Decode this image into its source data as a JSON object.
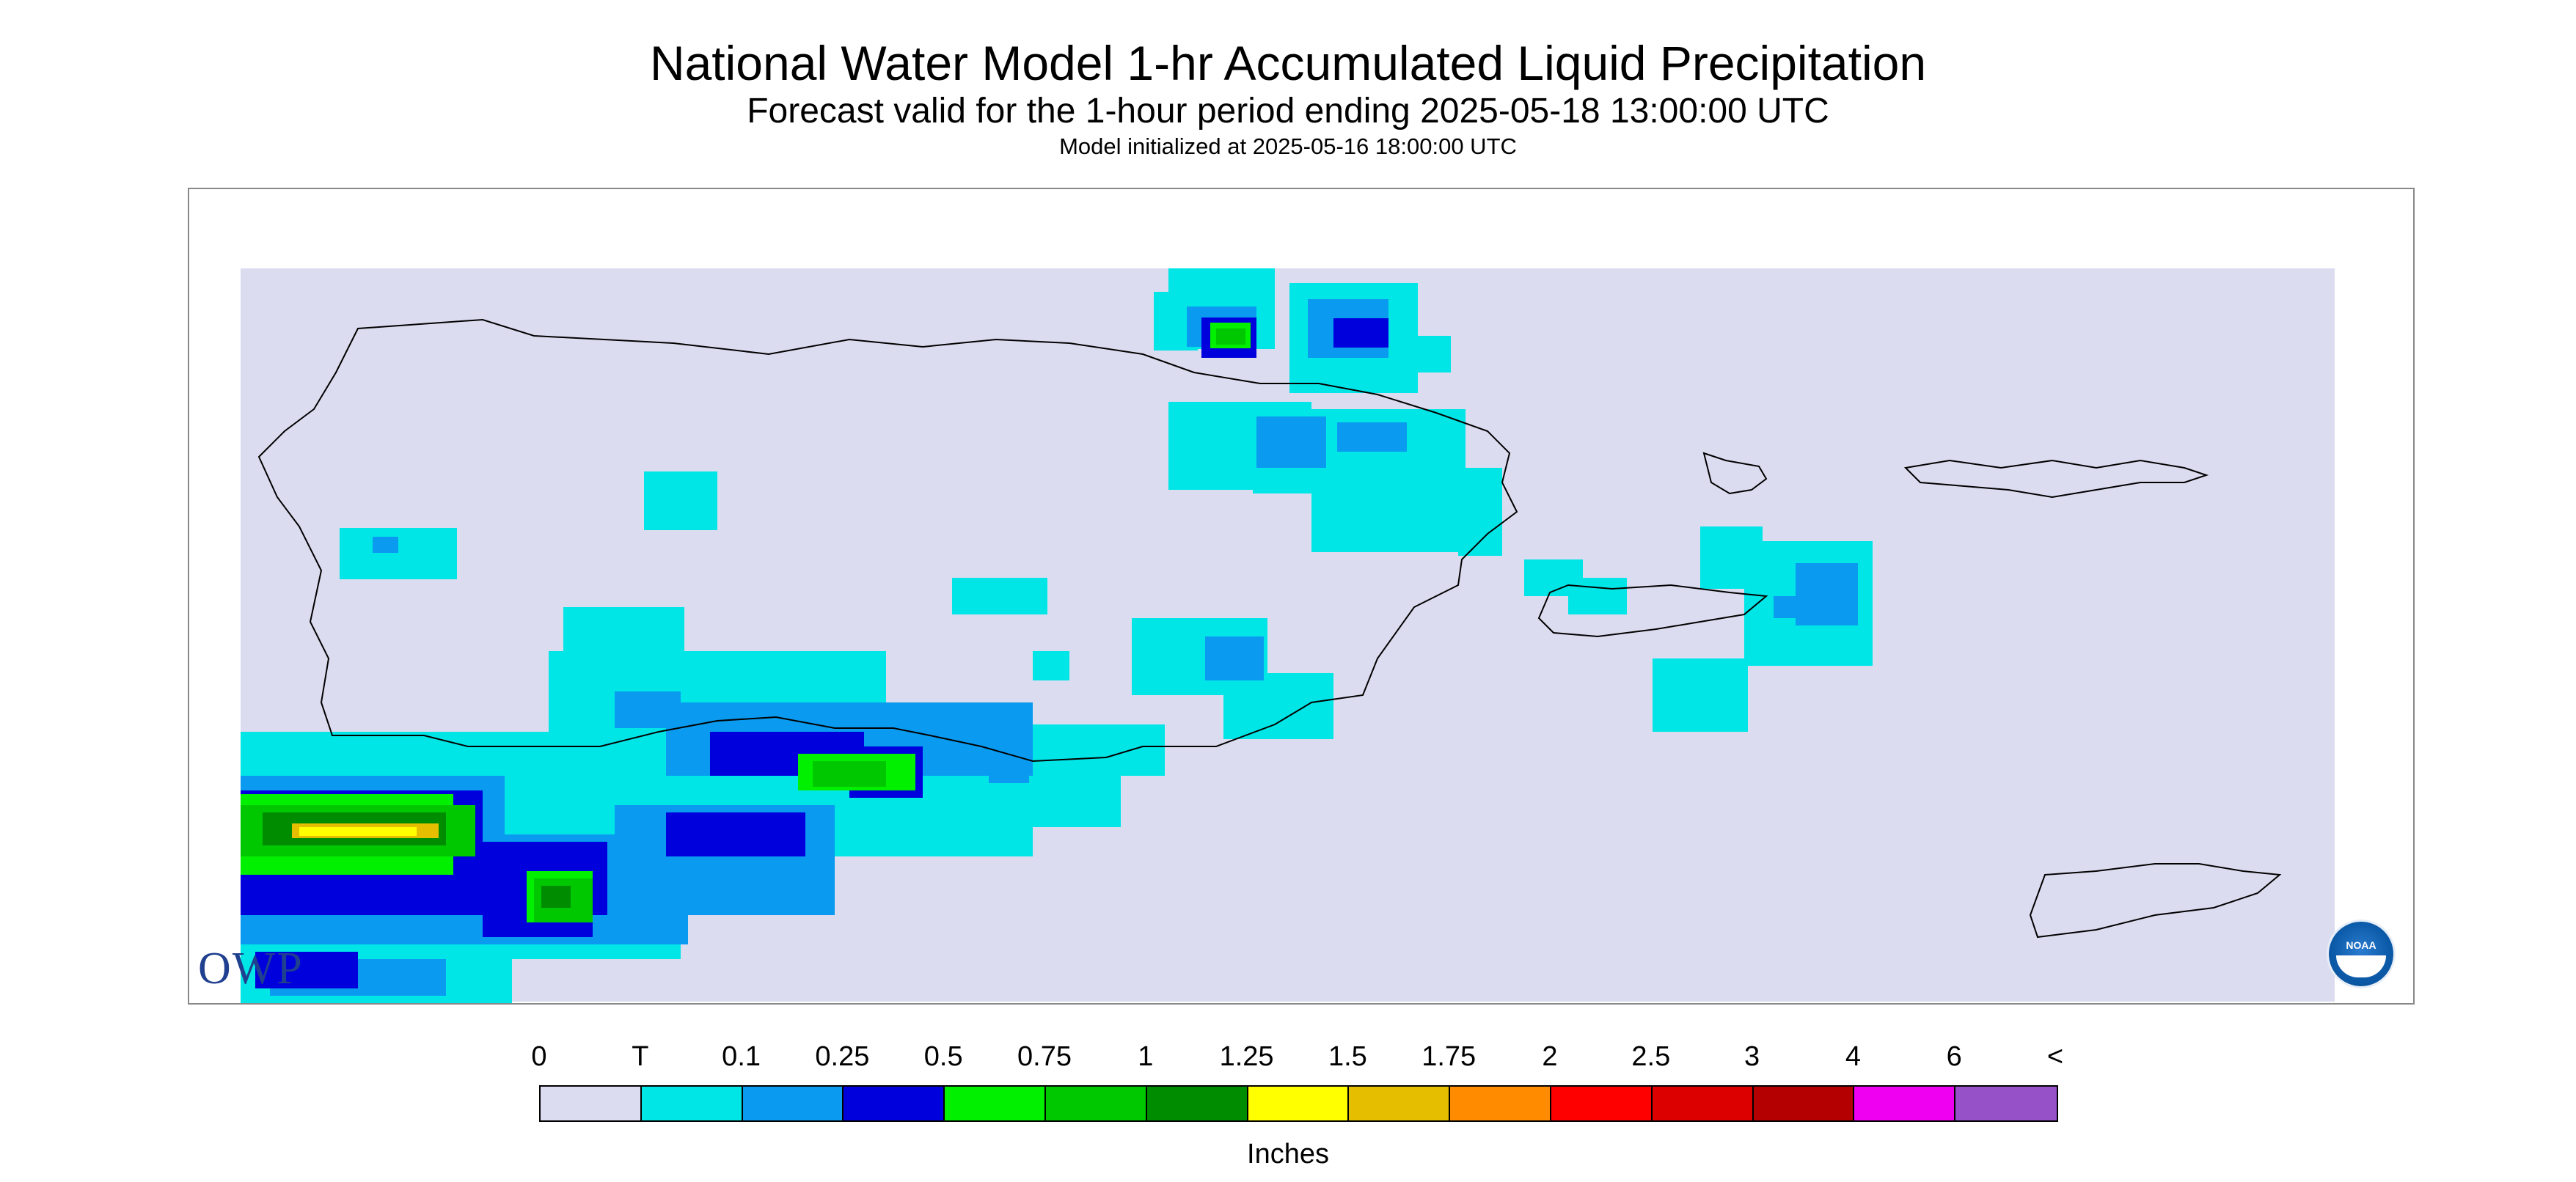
{
  "header": {
    "title": "National Water Model 1-hr Accumulated Liquid Precipitation",
    "subtitle": "Forecast valid for the 1-hour period ending 2025-05-18 13:00:00 UTC",
    "init_line": "Model initialized at 2025-05-16 18:00:00 UTC"
  },
  "legend": {
    "labels": [
      "0",
      "T",
      "0.1",
      "0.25",
      "0.5",
      "0.75",
      "1",
      "1.25",
      "1.5",
      "1.75",
      "2",
      "2.5",
      "3",
      "4",
      "6",
      "<"
    ],
    "colors": [
      "#dcdcf0",
      "#00e6e6",
      "#0a9bf0",
      "#0000dc",
      "#00f000",
      "#00c800",
      "#008c00",
      "#ffff00",
      "#e6be00",
      "#ff8c00",
      "#ff0000",
      "#dc0000",
      "#b40000",
      "#f000f0",
      "#9650c8"
    ],
    "units": "Inches"
  },
  "map": {
    "background_color": "#dcdcf0",
    "coastline_color": "#000000",
    "features": [
      "Puerto Rico",
      "Culebra",
      "Vieques",
      "St. Thomas",
      "St. John",
      "St. Croix"
    ]
  },
  "logos": {
    "owp": "OWP",
    "noaa": "NOAA"
  }
}
